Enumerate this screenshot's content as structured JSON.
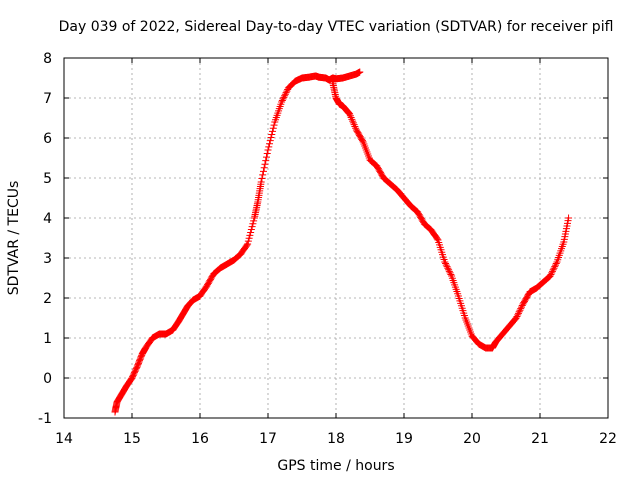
{
  "chart_data": {
    "type": "scatter",
    "title": "Day 039 of 2022, Sidereal Day-to-day VTEC variation (SDTVAR) for receiver pifl",
    "xlabel": "GPS time / hours",
    "ylabel": "SDTVAR / TECUs",
    "xlim": [
      14,
      22
    ],
    "ylim": [
      -1,
      8
    ],
    "x_ticks": [
      "14",
      "15",
      "16",
      "17",
      "18",
      "19",
      "20",
      "21",
      "22"
    ],
    "y_ticks": [
      "-1",
      "0",
      "1",
      "2",
      "3",
      "4",
      "5",
      "6",
      "7",
      "8"
    ],
    "grid": true,
    "marker": "+",
    "colors": {
      "series": "#ff0000",
      "grid": "#a0a0a0",
      "axes": "#000000"
    },
    "series": [
      {
        "name": "SDTVAR",
        "x": [
          14.75,
          14.78,
          14.85,
          14.92,
          15.0,
          15.08,
          15.15,
          15.2,
          15.3,
          15.4,
          15.5,
          15.6,
          15.68,
          15.75,
          15.82,
          15.9,
          16.0,
          16.1,
          16.2,
          16.3,
          16.4,
          16.5,
          16.6,
          16.7,
          16.8,
          16.85,
          16.9,
          17.0,
          17.1,
          17.2,
          17.3,
          17.4,
          17.5,
          17.6,
          17.7,
          17.75,
          17.85,
          17.9,
          17.95,
          18.0,
          18.1,
          18.2,
          18.3,
          18.35,
          17.95,
          18.0,
          18.05,
          18.1,
          18.15,
          18.2,
          18.3,
          18.4,
          18.5,
          18.6,
          18.7,
          18.8,
          18.9,
          19.0,
          19.1,
          19.2,
          19.3,
          19.4,
          19.5,
          19.6,
          19.7,
          19.8,
          19.9,
          20.0,
          20.1,
          20.2,
          20.3,
          20.35,
          20.45,
          20.55,
          20.65,
          20.75,
          20.85,
          20.95,
          21.05,
          21.15,
          21.25,
          21.35,
          21.42
        ],
        "y": [
          -0.85,
          -0.6,
          -0.4,
          -0.2,
          0.0,
          0.3,
          0.6,
          0.75,
          1.0,
          1.1,
          1.1,
          1.2,
          1.4,
          1.6,
          1.8,
          1.95,
          2.05,
          2.3,
          2.6,
          2.75,
          2.85,
          2.95,
          3.1,
          3.35,
          4.0,
          4.4,
          4.9,
          5.7,
          6.4,
          6.9,
          7.25,
          7.42,
          7.5,
          7.52,
          7.55,
          7.52,
          7.5,
          7.45,
          7.5,
          7.48,
          7.5,
          7.55,
          7.6,
          7.65,
          7.4,
          7.0,
          6.85,
          6.8,
          6.7,
          6.6,
          6.2,
          5.9,
          5.45,
          5.3,
          5.0,
          4.85,
          4.7,
          4.5,
          4.3,
          4.15,
          3.85,
          3.7,
          3.45,
          2.9,
          2.55,
          2.05,
          1.5,
          1.05,
          0.85,
          0.75,
          0.75,
          0.9,
          1.1,
          1.3,
          1.5,
          1.85,
          2.15,
          2.25,
          2.4,
          2.55,
          2.9,
          3.4,
          4.0
        ]
      }
    ]
  }
}
